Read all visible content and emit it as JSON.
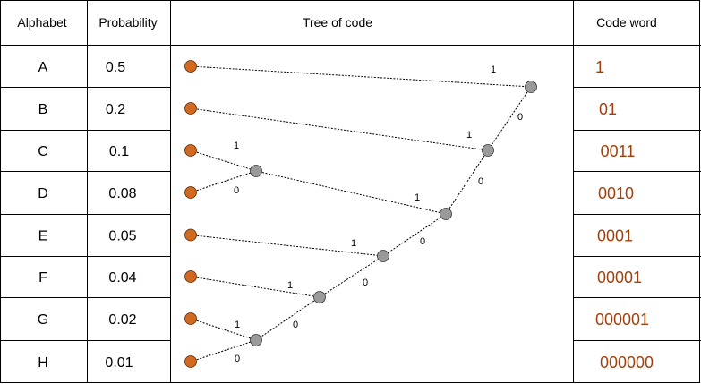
{
  "headers": {
    "alphabet": "Alphabet",
    "probability": "Probability",
    "tree": "Tree of code",
    "codeword": "Code word"
  },
  "rows": [
    {
      "symbol": "A",
      "probability": "0.5",
      "code": "1"
    },
    {
      "symbol": "B",
      "probability": "0.2",
      "code": "01"
    },
    {
      "symbol": "C",
      "probability": "0.1",
      "code": "0011"
    },
    {
      "symbol": "D",
      "probability": "0.08",
      "code": "0010"
    },
    {
      "symbol": "E",
      "probability": "0.05",
      "code": "0001"
    },
    {
      "symbol": "F",
      "probability": "0.04",
      "code": "00001"
    },
    {
      "symbol": "G",
      "probability": "0.02",
      "code": "000001"
    },
    {
      "symbol": "H",
      "probability": "0.01",
      "code": "000000"
    }
  ],
  "edge_labels": {
    "one": "1",
    "zero": "0"
  },
  "colors": {
    "leaf": "#d2691e",
    "internal_node": "#9a9a9a",
    "code_text": "#a0410d",
    "border": "#000000"
  }
}
